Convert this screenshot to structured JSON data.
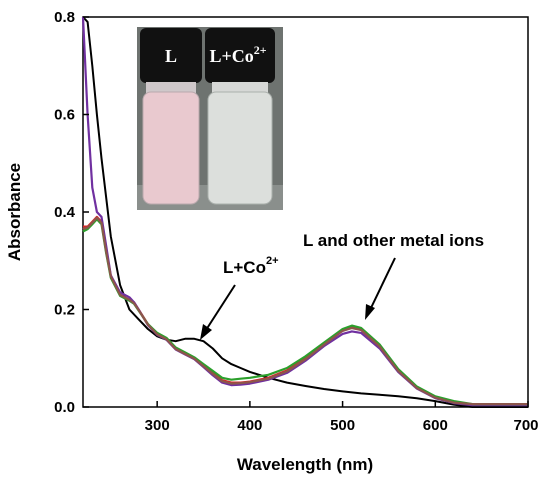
{
  "chart_data": {
    "type": "line",
    "xlabel": "Wavelength (nm)",
    "ylabel": "Absorbance",
    "xlim": [
      220,
      700
    ],
    "ylim": [
      0,
      0.8
    ],
    "x_ticks": [
      "300",
      "400",
      "500",
      "600",
      "700"
    ],
    "y_ticks": [
      "0.0",
      "0.2",
      "0.4",
      "0.6",
      "0.8"
    ],
    "grid": false,
    "legend": "none",
    "series": [
      {
        "color": "#000000",
        "x": [
          220,
          225,
          230,
          235,
          240,
          250,
          260,
          270,
          280,
          290,
          300,
          310,
          320,
          330,
          340,
          350,
          360,
          370,
          380,
          390,
          400,
          420,
          440,
          460,
          480,
          500,
          520,
          540,
          560,
          580,
          600,
          620,
          640,
          660,
          700
        ],
        "y": [
          0.8,
          0.79,
          0.7,
          0.6,
          0.51,
          0.35,
          0.25,
          0.2,
          0.18,
          0.16,
          0.145,
          0.138,
          0.135,
          0.14,
          0.14,
          0.135,
          0.12,
          0.1,
          0.088,
          0.08,
          0.072,
          0.06,
          0.05,
          0.043,
          0.037,
          0.032,
          0.028,
          0.025,
          0.022,
          0.018,
          0.012,
          0.005,
          0.0,
          0.0,
          0.0
        ]
      },
      {
        "color": "#d62728",
        "x": [
          220,
          225,
          230,
          235,
          240,
          245,
          250,
          260,
          270,
          275,
          280,
          290,
          300,
          310,
          320,
          330,
          340,
          350,
          360,
          370,
          380,
          390,
          400,
          420,
          440,
          460,
          480,
          500,
          510,
          520,
          540,
          560,
          580,
          600,
          620,
          640,
          660,
          700
        ],
        "y": [
          0.37,
          0.37,
          0.38,
          0.39,
          0.38,
          0.32,
          0.27,
          0.23,
          0.22,
          0.215,
          0.2,
          0.17,
          0.15,
          0.14,
          0.12,
          0.11,
          0.1,
          0.085,
          0.07,
          0.055,
          0.05,
          0.05,
          0.052,
          0.06,
          0.075,
          0.1,
          0.13,
          0.158,
          0.165,
          0.16,
          0.125,
          0.075,
          0.04,
          0.02,
          0.01,
          0.005,
          0.005,
          0.005
        ]
      },
      {
        "color": "#7030a0",
        "x": [
          220,
          225,
          230,
          235,
          240,
          245,
          250,
          260,
          270,
          275,
          280,
          290,
          300,
          310,
          320,
          330,
          340,
          350,
          360,
          370,
          380,
          390,
          400,
          420,
          440,
          460,
          480,
          500,
          510,
          520,
          540,
          560,
          580,
          600,
          620,
          640,
          660,
          700
        ],
        "y": [
          0.8,
          0.6,
          0.45,
          0.4,
          0.39,
          0.33,
          0.27,
          0.235,
          0.225,
          0.215,
          0.2,
          0.168,
          0.148,
          0.138,
          0.118,
          0.108,
          0.098,
          0.082,
          0.065,
          0.05,
          0.045,
          0.046,
          0.048,
          0.056,
          0.07,
          0.095,
          0.125,
          0.15,
          0.155,
          0.152,
          0.12,
          0.072,
          0.038,
          0.018,
          0.008,
          0.004,
          0.004,
          0.004
        ]
      },
      {
        "color": "#2ca02c",
        "x": [
          220,
          225,
          230,
          235,
          240,
          245,
          250,
          260,
          270,
          275,
          280,
          290,
          300,
          310,
          320,
          330,
          340,
          350,
          360,
          370,
          380,
          390,
          400,
          420,
          440,
          460,
          480,
          500,
          510,
          520,
          540,
          560,
          580,
          600,
          620,
          640,
          660,
          700
        ],
        "y": [
          0.36,
          0.365,
          0.375,
          0.385,
          0.375,
          0.315,
          0.265,
          0.228,
          0.218,
          0.212,
          0.198,
          0.17,
          0.152,
          0.142,
          0.122,
          0.112,
          0.102,
          0.088,
          0.074,
          0.06,
          0.056,
          0.058,
          0.06,
          0.066,
          0.08,
          0.104,
          0.132,
          0.16,
          0.167,
          0.162,
          0.128,
          0.078,
          0.042,
          0.022,
          0.012,
          0.006,
          0.006,
          0.006
        ]
      },
      {
        "color": "#8c564b",
        "x": [
          220,
          225,
          230,
          235,
          240,
          245,
          250,
          260,
          270,
          275,
          280,
          290,
          300,
          310,
          320,
          330,
          340,
          350,
          360,
          370,
          380,
          390,
          400,
          420,
          440,
          460,
          480,
          500,
          510,
          520,
          540,
          560,
          580,
          600,
          620,
          640,
          660,
          700
        ],
        "y": [
          0.365,
          0.368,
          0.378,
          0.388,
          0.378,
          0.318,
          0.268,
          0.23,
          0.22,
          0.213,
          0.199,
          0.169,
          0.149,
          0.139,
          0.119,
          0.109,
          0.099,
          0.084,
          0.068,
          0.053,
          0.048,
          0.049,
          0.051,
          0.058,
          0.073,
          0.098,
          0.128,
          0.156,
          0.162,
          0.158,
          0.124,
          0.074,
          0.039,
          0.019,
          0.009,
          0.006,
          0.006,
          0.006
        ]
      }
    ],
    "annotations": [
      "L+Co",
      "2+",
      "L and other metal ions"
    ]
  },
  "inset": {
    "vial_left_label": "L",
    "vial_right_label_base": "L+Co",
    "vial_right_label_sup": "2+"
  },
  "colors": {
    "axis": "#000000",
    "cap": "#111111",
    "solution_left": "#e9c9cf",
    "solution_right": "#dcdfdc"
  }
}
